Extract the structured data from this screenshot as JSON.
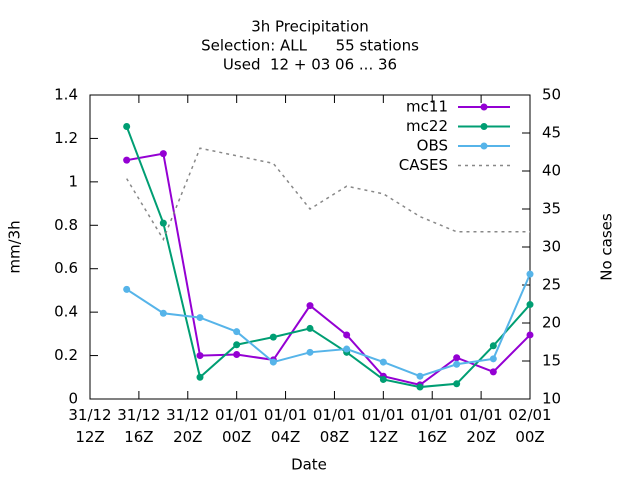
{
  "chart_data": {
    "type": "line",
    "title": "3h Precipitation",
    "subtitle": "Selection: ALL      55 stations",
    "subtitle2": "Used  12 + 03 06 ... 36",
    "xlabel": "Date",
    "ylabel": "mm/3h",
    "y2label": "No cases",
    "x": [
      3,
      6,
      9,
      12,
      15,
      18,
      21,
      24,
      27,
      30,
      33,
      36
    ],
    "xlim": [
      0,
      36
    ],
    "xticks": [
      {
        "value": 0,
        "label": "31/12\n12Z"
      },
      {
        "value": 4,
        "label": "31/12\n16Z"
      },
      {
        "value": 8,
        "label": "31/12\n20Z"
      },
      {
        "value": 12,
        "label": "01/01\n00Z"
      },
      {
        "value": 16,
        "label": "01/01\n04Z"
      },
      {
        "value": 20,
        "label": "01/01\n08Z"
      },
      {
        "value": 24,
        "label": "01/01\n12Z"
      },
      {
        "value": 28,
        "label": "01/01\n16Z"
      },
      {
        "value": 32,
        "label": "01/01\n20Z"
      },
      {
        "value": 36,
        "label": "02/01\n00Z"
      }
    ],
    "ylim": [
      0,
      1.4
    ],
    "yticks": [
      0,
      0.2,
      0.4,
      0.6,
      0.8,
      1,
      1.2,
      1.4
    ],
    "y2lim": [
      10,
      50
    ],
    "y2ticks": [
      10,
      15,
      20,
      25,
      30,
      35,
      40,
      45,
      50
    ],
    "legend": "top-right",
    "series": [
      {
        "name": "mc11",
        "color": "#9400d3",
        "values": [
          1.1,
          1.13,
          0.2,
          0.205,
          0.18,
          0.43,
          0.295,
          0.105,
          0.065,
          0.19,
          0.125,
          0.295
        ]
      },
      {
        "name": "mc22",
        "color": "#009e73",
        "values": [
          1.255,
          0.81,
          0.1,
          0.25,
          0.285,
          0.325,
          0.215,
          0.09,
          0.055,
          0.07,
          0.245,
          0.435
        ]
      },
      {
        "name": "OBS",
        "color": "#56b4e9",
        "values": [
          0.505,
          0.395,
          0.375,
          0.31,
          0.17,
          0.215,
          0.23,
          0.17,
          0.105,
          0.16,
          0.185,
          0.575
        ]
      },
      {
        "name": "CASES",
        "color": "#888888",
        "axis": "y2",
        "dashed": true,
        "values": [
          39,
          31,
          43,
          42,
          41,
          35,
          38,
          37,
          34,
          32,
          32,
          32
        ]
      }
    ]
  }
}
